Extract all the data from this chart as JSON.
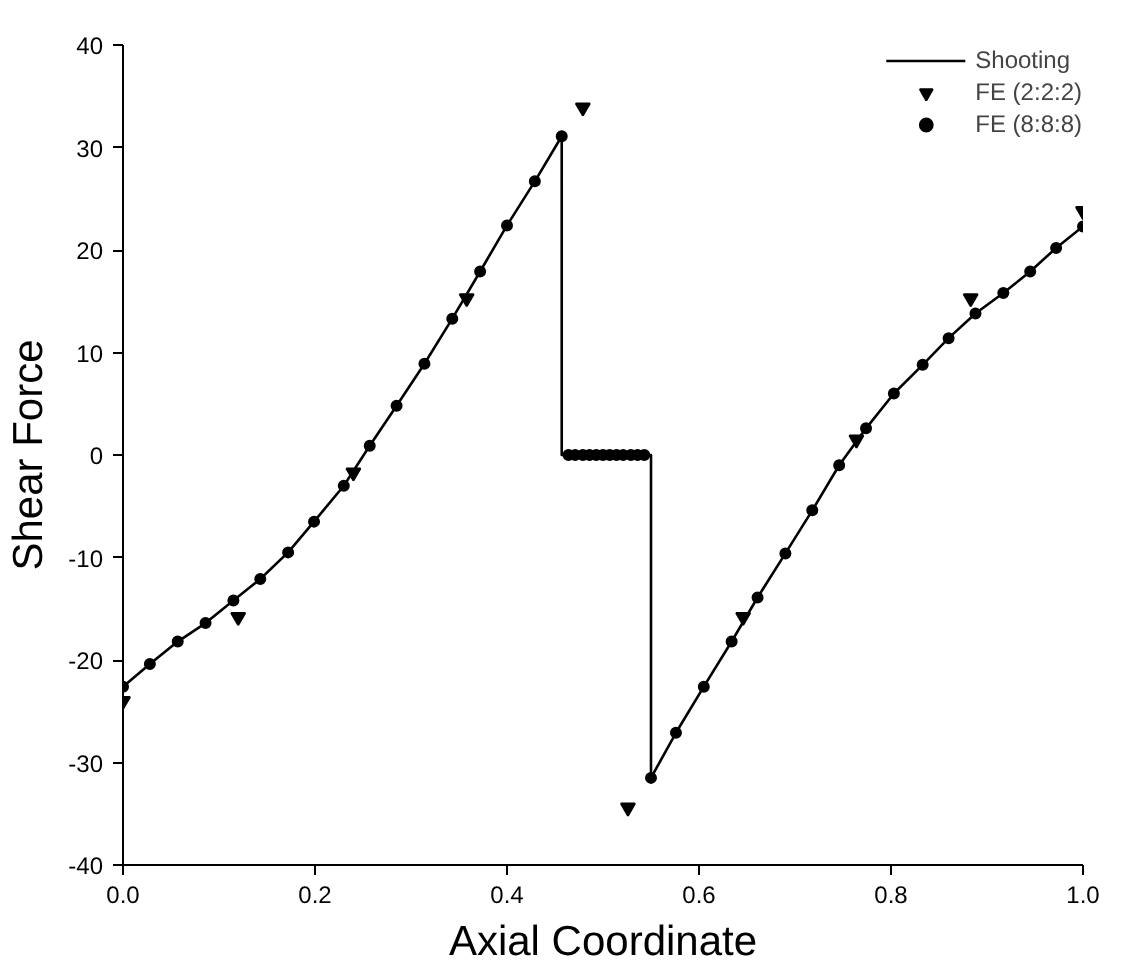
{
  "chart_data": {
    "type": "line",
    "xlabel": "Axial Coordinate",
    "ylabel": "Shear Force",
    "xlim": [
      0,
      1
    ],
    "ylim": [
      -40,
      40
    ],
    "xticks": [
      {
        "value": 0,
        "label": "0.0"
      },
      0.2,
      0.4,
      0.6,
      0.8,
      {
        "value": 1,
        "label": "1.0"
      }
    ],
    "yticks": [
      -40,
      -30,
      -20,
      -10,
      0,
      10,
      20,
      30,
      40
    ],
    "grid": false,
    "legend": "top right",
    "series": [
      {
        "name": "Shooting",
        "color": "#000000",
        "marker": "none",
        "line_style": "solid",
        "x": [
          0,
          0.028,
          0.057,
          0.086,
          0.115,
          0.143,
          0.172,
          0.199,
          0.23,
          0.257,
          0.285,
          0.314,
          0.343,
          0.372,
          0.4,
          0.429,
          0.457,
          0.457,
          0.55,
          0.55,
          0.576,
          0.605,
          0.634,
          0.661,
          0.69,
          0.718,
          0.746,
          0.774,
          0.803,
          0.833,
          0.86,
          0.888,
          0.917,
          0.945,
          0.972,
          1.0
        ],
        "values": [
          -22.6,
          -20.4,
          -18.2,
          -16.4,
          -14.2,
          -12.1,
          -9.5,
          -6.5,
          -3.0,
          0.9,
          4.8,
          8.9,
          13.3,
          17.9,
          22.4,
          26.7,
          31.1,
          0,
          0,
          -31.5,
          -27.1,
          -22.6,
          -18.2,
          -13.9,
          -9.6,
          -5.4,
          -1.0,
          2.6,
          6.0,
          8.8,
          11.4,
          13.8,
          15.8,
          17.9,
          20.2,
          22.3
        ]
      },
      {
        "name": "FE (2:2:2)",
        "type": "scatter",
        "color": "#000000",
        "marker": "triangle",
        "x": [
          0,
          0.12,
          0.24,
          0.358,
          0.479,
          0.526,
          0.646,
          0.764,
          0.883,
          1.0
        ],
        "values": [
          -24.0,
          -15.8,
          -1.7,
          15.3,
          33.9,
          -34.4,
          -15.8,
          1.5,
          15.3,
          23.8
        ]
      },
      {
        "name": "FE (8:8:8)",
        "type": "scatter",
        "color": "#000000",
        "marker": "circle",
        "x": [
          0,
          0.028,
          0.057,
          0.086,
          0.115,
          0.143,
          0.172,
          0.199,
          0.23,
          0.257,
          0.285,
          0.314,
          0.343,
          0.372,
          0.4,
          0.429,
          0.457,
          0.464,
          0.471,
          0.479,
          0.486,
          0.493,
          0.5,
          0.507,
          0.514,
          0.521,
          0.529,
          0.536,
          0.543,
          0.55,
          0.576,
          0.605,
          0.634,
          0.661,
          0.69,
          0.718,
          0.746,
          0.774,
          0.803,
          0.833,
          0.86,
          0.888,
          0.917,
          0.945,
          0.972,
          1.0
        ],
        "values": [
          -22.6,
          -20.4,
          -18.2,
          -16.4,
          -14.2,
          -12.1,
          -9.5,
          -6.5,
          -3.0,
          0.9,
          4.8,
          8.9,
          13.3,
          17.9,
          22.4,
          26.7,
          31.1,
          0,
          0,
          0,
          0,
          0,
          0,
          0,
          0,
          0,
          0,
          0,
          0,
          -31.5,
          -27.1,
          -22.6,
          -18.2,
          -13.9,
          -9.6,
          -5.4,
          -1.0,
          2.6,
          6.0,
          8.8,
          11.4,
          13.8,
          15.8,
          17.9,
          20.2,
          22.3
        ]
      }
    ]
  }
}
